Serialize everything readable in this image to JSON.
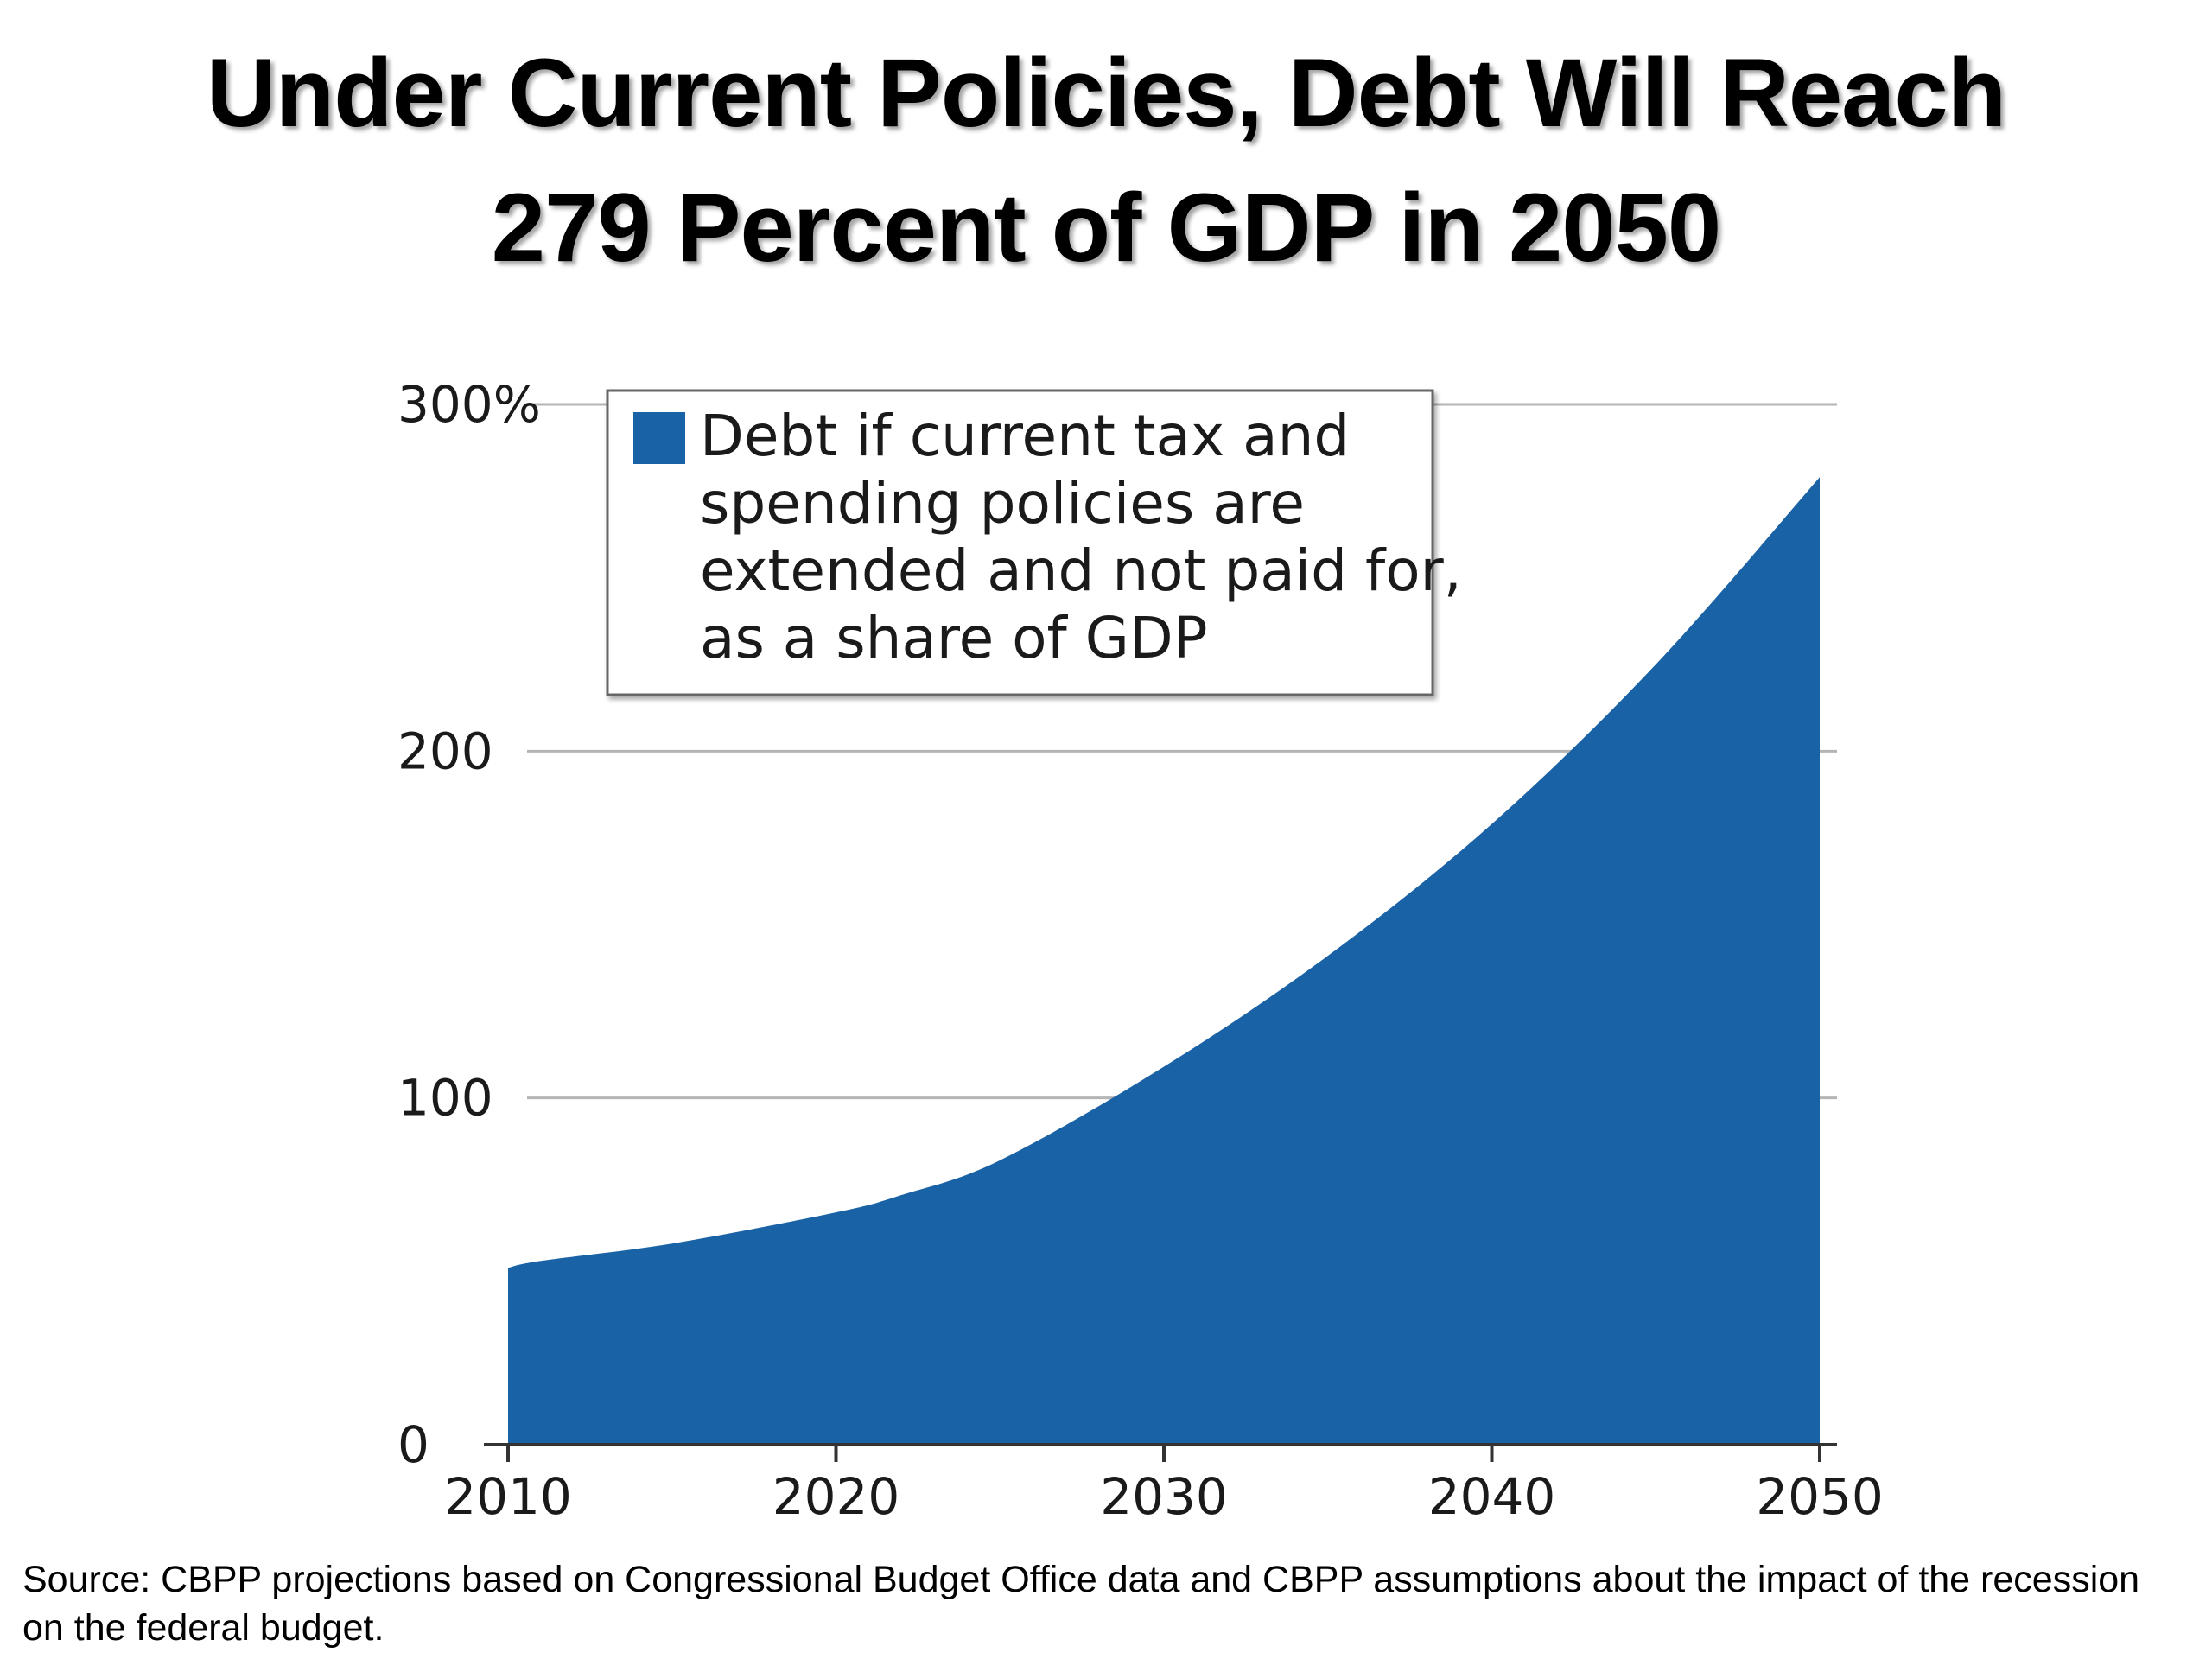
{
  "title": {
    "line1": "Under Current Policies, Debt Will Reach",
    "line2": "279 Percent of GDP in 2050"
  },
  "source": "Source: CBPP projections based on Congressional Budget Office data and CBPP assumptions about the impact of the recession on the federal budget.",
  "colors": {
    "area": "#1a62a6",
    "grid": "#b5b5b5",
    "axis": "#333333",
    "text": "#1a1a1a"
  },
  "chart_data": {
    "type": "area",
    "title": "",
    "xlabel": "",
    "ylabel": "",
    "xlim": [
      2010,
      2050
    ],
    "ylim": [
      0,
      300
    ],
    "grid": true,
    "legend_position": "top-left",
    "x_ticks": [
      2010,
      2020,
      2030,
      2040,
      2050
    ],
    "x_tick_labels": [
      "2010",
      "2020",
      "2030",
      "2040",
      "2050"
    ],
    "y_ticks": [
      0,
      100,
      200,
      300
    ],
    "y_tick_labels": [
      "0",
      "100",
      "200",
      "300%"
    ],
    "series": [
      {
        "name": "Debt if current tax and spending policies are extended and not paid for, as a share of GDP",
        "legend_lines": [
          "Debt if current tax and",
          "spending policies are",
          "extended and not paid for,",
          "as a share of GDP"
        ],
        "color": "#1a62a6",
        "x": [
          2010,
          2011,
          2015,
          2020,
          2022,
          2025,
          2030,
          2035,
          2040,
          2045,
          2050
        ],
        "values": [
          51,
          53,
          58,
          67,
          72,
          82,
          109,
          141,
          179,
          225,
          279
        ]
      }
    ]
  }
}
